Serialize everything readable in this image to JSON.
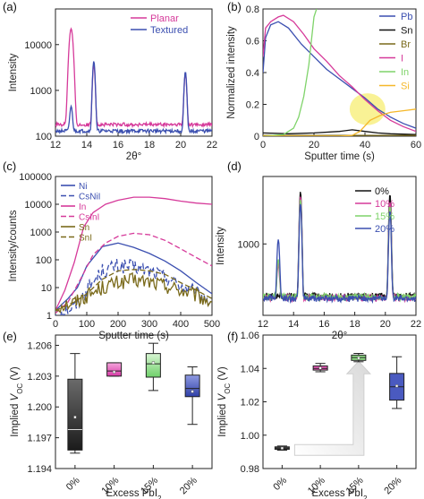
{
  "chart_data": [
    {
      "panel": "(a)",
      "type": "line",
      "xlabel": "2θ°",
      "ylabel": "Intensity",
      "xlim": [
        12,
        22
      ],
      "ylim": [
        100,
        60000
      ],
      "yscale": "log",
      "xticks": [
        12,
        14,
        16,
        18,
        20,
        22
      ],
      "yticks": [
        {
          "v": 100,
          "t": "100"
        },
        {
          "v": 1000,
          "t": "1000"
        },
        {
          "v": 10000,
          "t": "10000"
        }
      ],
      "legend_position": "top-right",
      "series": [
        {
          "name": "Planar",
          "color": "#d63a9a",
          "baseline": 180,
          "peaks": [
            [
              13.0,
              22000,
              0.14
            ],
            [
              14.45,
              3500,
              0.09
            ],
            [
              20.3,
              2200,
              0.09
            ]
          ]
        },
        {
          "name": "Textured",
          "color": "#3b4fb0",
          "baseline": 130,
          "peaks": [
            [
              13.0,
              320,
              0.1
            ],
            [
              14.45,
              4200,
              0.09
            ],
            [
              20.3,
              2400,
              0.09
            ]
          ]
        }
      ]
    },
    {
      "panel": "(b)",
      "type": "line",
      "xlabel": "Sputter time (s)",
      "ylabel": "Normalized intensity",
      "xlim": [
        0,
        60
      ],
      "ylim": [
        0,
        0.8
      ],
      "xticks": [
        0,
        20,
        40,
        60
      ],
      "yticks": [
        0,
        0.2,
        0.4,
        0.6,
        0.8
      ],
      "legend_position": "right",
      "series": [
        {
          "name": "Pb",
          "color": "#3b4fb0",
          "x": [
            0,
            1,
            3,
            6,
            10,
            15,
            20,
            25,
            30,
            35,
            40,
            45,
            50,
            55,
            60
          ],
          "y": [
            0.4,
            0.62,
            0.7,
            0.72,
            0.68,
            0.58,
            0.5,
            0.42,
            0.36,
            0.3,
            0.24,
            0.17,
            0.12,
            0.08,
            0.05
          ]
        },
        {
          "name": "Sn",
          "color": "#111111",
          "x": [
            0,
            10,
            20,
            30,
            35,
            40,
            45,
            50,
            60
          ],
          "y": [
            0.02,
            0.015,
            0.02,
            0.03,
            0.04,
            0.03,
            0.02,
            0.015,
            0.01
          ]
        },
        {
          "name": "Br",
          "color": "#7a6a1a",
          "x": [
            0,
            20,
            40,
            60
          ],
          "y": [
            0.005,
            0.005,
            0.005,
            0.005
          ]
        },
        {
          "name": "I",
          "color": "#d63a9a",
          "x": [
            0,
            1,
            3,
            6,
            8,
            12,
            16,
            20,
            25,
            30,
            35,
            40,
            45,
            50,
            55,
            60
          ],
          "y": [
            0.5,
            0.68,
            0.72,
            0.75,
            0.76,
            0.72,
            0.64,
            0.55,
            0.47,
            0.38,
            0.31,
            0.23,
            0.16,
            0.1,
            0.06,
            0.03
          ]
        },
        {
          "name": "In",
          "color": "#7fd36a",
          "x": [
            0,
            8,
            12,
            14,
            16,
            18,
            19,
            20,
            21
          ],
          "y": [
            0.0,
            0.01,
            0.05,
            0.12,
            0.25,
            0.45,
            0.6,
            0.75,
            0.8
          ]
        },
        {
          "name": "Si",
          "color": "#f5b82a",
          "x": [
            0,
            30,
            35,
            38,
            42,
            46,
            50,
            55,
            60
          ],
          "y": [
            0.0,
            0.0,
            0.005,
            0.03,
            0.1,
            0.13,
            0.15,
            0.16,
            0.17
          ]
        }
      ],
      "highlight": {
        "x": 41,
        "y": 0.17,
        "rx": 7,
        "ry": 0.1,
        "color": "#f7ef7a"
      }
    },
    {
      "panel": "(c)",
      "type": "line",
      "xlabel": "Sputter time (s)",
      "ylabel": "Intensity/counts",
      "xlim": [
        0,
        500
      ],
      "ylim": [
        1,
        100000
      ],
      "yscale": "log",
      "xticks": [
        0,
        100,
        200,
        300,
        400,
        500
      ],
      "yticks": [
        {
          "v": 1,
          "t": "1"
        },
        {
          "v": 10,
          "t": "10"
        },
        {
          "v": 100,
          "t": "100"
        },
        {
          "v": 1000,
          "t": "1000"
        },
        {
          "v": 10000,
          "t": "10000"
        },
        {
          "v": 100000,
          "t": "100000"
        }
      ],
      "legend_position": "top-left",
      "series": [
        {
          "name": "Ni",
          "color": "#3b4fb0",
          "dash": "",
          "noisy": false,
          "x": [
            0,
            40,
            70,
            100,
            150,
            200,
            250,
            300,
            350,
            400,
            450,
            500
          ],
          "y": [
            1.5,
            4,
            10,
            60,
            300,
            400,
            280,
            170,
            90,
            40,
            15,
            6
          ]
        },
        {
          "name": "CsNiI",
          "color": "#3b4fb0",
          "dash": "6,3",
          "noisy": true,
          "x": [
            0,
            60,
            100,
            150,
            200,
            250,
            300,
            350,
            400,
            450,
            500
          ],
          "y": [
            1.2,
            2,
            8,
            40,
            60,
            55,
            40,
            25,
            12,
            6,
            3
          ]
        },
        {
          "name": "In",
          "color": "#d63a9a",
          "dash": "",
          "noisy": false,
          "x": [
            0,
            30,
            60,
            90,
            120,
            160,
            200,
            250,
            300,
            350,
            400,
            450,
            500
          ],
          "y": [
            1.5,
            8,
            80,
            1500,
            5000,
            10000,
            14000,
            18000,
            18000,
            16000,
            13000,
            11000,
            10000
          ]
        },
        {
          "name": "CsInI",
          "color": "#d63a9a",
          "dash": "6,3",
          "noisy": false,
          "x": [
            0,
            40,
            80,
            120,
            160,
            200,
            250,
            300,
            350,
            400,
            450,
            500
          ],
          "y": [
            1.2,
            3,
            20,
            150,
            400,
            700,
            900,
            800,
            500,
            250,
            120,
            60
          ]
        },
        {
          "name": "Sn",
          "color": "#7a6a1a",
          "dash": "",
          "noisy": true,
          "x": [
            0,
            60,
            100,
            150,
            200,
            250,
            300,
            350,
            400,
            450,
            500
          ],
          "y": [
            2,
            3,
            5,
            10,
            15,
            18,
            16,
            12,
            8,
            5,
            3
          ]
        },
        {
          "name": "SnI",
          "color": "#7a6a1a",
          "dash": "6,3",
          "noisy": false,
          "x": [
            0,
            60,
            100,
            150,
            200,
            250,
            300,
            350,
            400,
            450,
            500
          ],
          "y": [
            1.5,
            3,
            6,
            20,
            40,
            45,
            40,
            30,
            15,
            8,
            4
          ]
        }
      ]
    },
    {
      "panel": "(d)",
      "type": "line",
      "xlabel": "2θ°",
      "ylabel": "Intensity",
      "xlim": [
        12,
        22
      ],
      "ylim": [
        150,
        6000
      ],
      "yscale": "log",
      "xticks": [
        12,
        14,
        16,
        18,
        20,
        22
      ],
      "yticks": [
        {
          "v": 1000,
          "t": "1000"
        }
      ],
      "legend_position": "top-right",
      "series": [
        {
          "name": "0%",
          "color": "#111111",
          "baseline": 250,
          "peaks": [
            [
              14.45,
              3800,
              0.09
            ],
            [
              20.3,
              3500,
              0.09
            ]
          ]
        },
        {
          "name": "10%",
          "color": "#d63a9a",
          "baseline": 240,
          "peaks": [
            [
              13.0,
              350,
              0.1
            ],
            [
              14.45,
              3300,
              0.09
            ],
            [
              20.3,
              2800,
              0.09
            ]
          ]
        },
        {
          "name": "15%",
          "color": "#7fd36a",
          "baseline": 245,
          "peaks": [
            [
              13.0,
              420,
              0.1
            ],
            [
              14.45,
              3000,
              0.09
            ],
            [
              20.3,
              2500,
              0.09
            ]
          ]
        },
        {
          "name": "20%",
          "color": "#3b4fb0",
          "baseline": 235,
          "peaks": [
            [
              13.0,
              900,
              0.1
            ],
            [
              14.45,
              2700,
              0.09
            ],
            [
              20.3,
              2200,
              0.09
            ]
          ]
        }
      ]
    },
    {
      "panel": "(e)",
      "type": "box",
      "xlabel": "Excess PbI2",
      "ylabel": "Implied VOC (V)",
      "categories": [
        "0%",
        "10%",
        "15%",
        "20%"
      ],
      "ylim": [
        1.194,
        1.207
      ],
      "yticks": [
        1.194,
        1.197,
        1.2,
        1.203,
        1.206
      ],
      "boxes": [
        {
          "min": 1.1955,
          "q1": 1.1958,
          "median": 1.1978,
          "mean": 1.199,
          "q3": 1.2027,
          "max": 1.2052,
          "color": "#2a2a2a"
        },
        {
          "min": 1.203,
          "q1": 1.203,
          "median": 1.2035,
          "mean": 1.2034,
          "q3": 1.2043,
          "max": 1.2043,
          "color": "#e55ab8"
        },
        {
          "min": 1.2016,
          "q1": 1.2029,
          "median": 1.2042,
          "mean": 1.2043,
          "q3": 1.2052,
          "max": 1.2062,
          "color": "#8fdc84"
        },
        {
          "min": 1.1983,
          "q1": 1.201,
          "median": 1.2018,
          "mean": 1.2015,
          "q3": 1.2031,
          "max": 1.2039,
          "color": "#4a5ac0"
        }
      ]
    },
    {
      "panel": "(f)",
      "type": "box",
      "xlabel": "Excess PbI2",
      "ylabel": "Implied VOC (V)",
      "categories": [
        "0%",
        "10%",
        "15%",
        "20%"
      ],
      "ylim": [
        0.98,
        1.06
      ],
      "yticks": [
        0.98,
        1.0,
        1.02,
        1.04,
        1.06
      ],
      "boxes": [
        {
          "min": 0.991,
          "q1": 0.9915,
          "median": 0.9922,
          "mean": 0.9922,
          "q3": 0.993,
          "max": 0.9935,
          "color": "#555555"
        },
        {
          "min": 1.038,
          "q1": 1.039,
          "median": 1.04,
          "mean": 1.0402,
          "q3": 1.0415,
          "max": 1.043,
          "color": "#e55ab8"
        },
        {
          "min": 1.044,
          "q1": 1.0448,
          "median": 1.0465,
          "mean": 1.0462,
          "q3": 1.048,
          "max": 1.049,
          "color": "#8fdc84"
        },
        {
          "min": 1.016,
          "q1": 1.021,
          "median": 1.029,
          "mean": 1.0295,
          "q3": 1.037,
          "max": 1.047,
          "color": "#4a5ac0"
        }
      ],
      "arrow": true
    }
  ]
}
